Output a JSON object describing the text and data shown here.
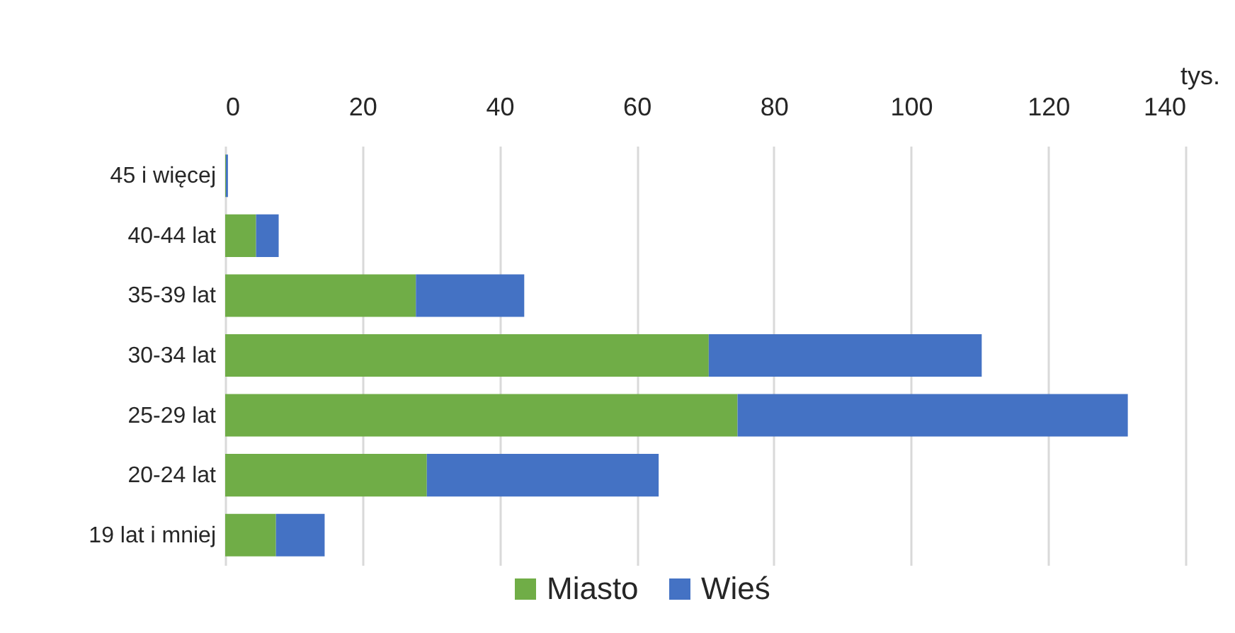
{
  "chart_data": {
    "type": "bar",
    "orientation": "horizontal",
    "stacked": true,
    "categories": [
      "45 i więcej",
      "40-44 lat",
      "35-39 lat",
      "30-34 lat",
      "25-29 lat",
      "20-24 lat",
      "19 lat i mniej"
    ],
    "series": [
      {
        "name": "Miasto",
        "color": "#70ad47",
        "values": [
          0.1,
          4.5,
          27.8,
          70.5,
          74.7,
          29.4,
          7.4
        ]
      },
      {
        "name": "Wieś",
        "color": "#4472c4",
        "values": [
          0.3,
          3.3,
          15.8,
          39.8,
          56.9,
          33.8,
          7.1
        ]
      }
    ],
    "xlabel": "tys.",
    "xlim": [
      0,
      140
    ],
    "xticks": [
      0,
      20,
      40,
      60,
      80,
      100,
      120,
      140
    ],
    "grid": "x",
    "legend": "bottom"
  }
}
